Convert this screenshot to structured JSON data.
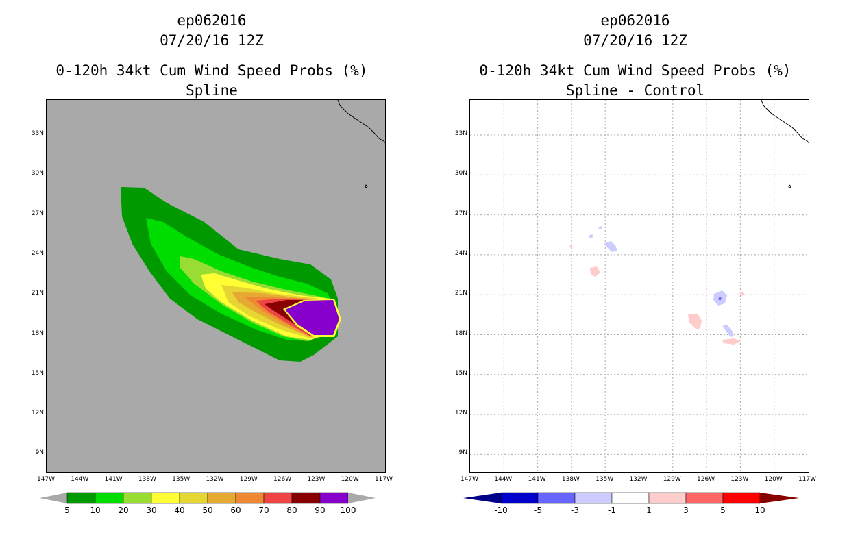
{
  "left_panel": {
    "storm_id": "ep062016",
    "date_time": "07/20/16 12Z",
    "product": "0-120h 34kt Cum Wind Speed Probs (%)",
    "method": "Spline",
    "lat_labels": [
      "33N",
      "30N",
      "27N",
      "24N",
      "21N",
      "18N",
      "15N",
      "12N",
      "9N"
    ],
    "lon_labels": [
      "147W",
      "144W",
      "141W",
      "138W",
      "135W",
      "132W",
      "129W",
      "126W",
      "123W",
      "120W",
      "117W"
    ],
    "colorbar": {
      "labels": [
        "5",
        "10",
        "20",
        "30",
        "40",
        "50",
        "60",
        "70",
        "80",
        "90",
        "100"
      ],
      "colors": [
        "#009900",
        "#00dd00",
        "#99dd33",
        "#ffff33",
        "#e6d633",
        "#e6aa33",
        "#ee8833",
        "#ee4444",
        "#880000",
        "#8800cc"
      ]
    },
    "background_color": "#a9a9a9"
  },
  "right_panel": {
    "storm_id": "ep062016",
    "date_time": "07/20/16 12Z",
    "product": "0-120h 34kt Cum Wind Speed Probs (%)",
    "method": "Spline - Control",
    "lat_labels": [
      "33N",
      "30N",
      "27N",
      "24N",
      "21N",
      "18N",
      "15N",
      "12N",
      "9N"
    ],
    "lon_labels": [
      "147W",
      "144W",
      "141W",
      "138W",
      "135W",
      "132W",
      "129W",
      "126W",
      "123W",
      "120W",
      "117W"
    ],
    "colorbar": {
      "labels": [
        "-10",
        "-5",
        "-3",
        "-1",
        "1",
        "3",
        "5",
        "10"
      ],
      "colors": [
        "#0000cc",
        "#6666ff",
        "#ccccff",
        "#ffffff",
        "#ffcccc",
        "#ff6666",
        "#ff0000"
      ],
      "end_colors": [
        "#000088",
        "#880000"
      ]
    }
  }
}
